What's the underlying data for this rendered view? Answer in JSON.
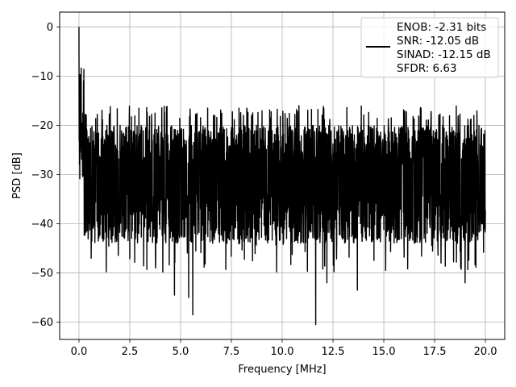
{
  "chart_data": {
    "type": "line",
    "xlabel": "Frequency [MHz]",
    "ylabel": "PSD [dB]",
    "xlim": [
      -0.95,
      20.95
    ],
    "ylim": [
      -63.5,
      3.0
    ],
    "xticks": [
      "0.0",
      "2.5",
      "5.0",
      "7.5",
      "10.0",
      "12.5",
      "15.0",
      "17.5",
      "20.0"
    ],
    "xtick_values": [
      0,
      2.5,
      5,
      7.5,
      10,
      12.5,
      15,
      17.5,
      20
    ],
    "yticks": [
      "0",
      "−10",
      "−20",
      "−30",
      "−40",
      "−50",
      "−60"
    ],
    "ytick_values": [
      0,
      -10,
      -20,
      -30,
      -40,
      -50,
      -60
    ],
    "grid": true,
    "legend_position": "top-right",
    "legend": {
      "line_color": "#000000",
      "lines": [
        "ENOB: -2.31 bits",
        "SNR: -12.05 dB",
        "SINAD: -12.15 dB",
        "SFDR: 6.63"
      ]
    },
    "series": [
      {
        "color": "#000000",
        "x_range": [
          0,
          20
        ],
        "peak": {
          "x": 0.0,
          "y": 0.0
        },
        "band_top_approx": -20,
        "band_bottom_approx": -40,
        "spike_minima": [
          {
            "x": 0.6,
            "y": -47
          },
          {
            "x": 4.7,
            "y": -54.5
          },
          {
            "x": 5.4,
            "y": -55
          },
          {
            "x": 5.6,
            "y": -58.5
          },
          {
            "x": 11.65,
            "y": -60.5
          },
          {
            "x": 12.2,
            "y": -52
          },
          {
            "x": 13.7,
            "y": -53.5
          },
          {
            "x": 19.0,
            "y": -52
          }
        ]
      }
    ]
  }
}
